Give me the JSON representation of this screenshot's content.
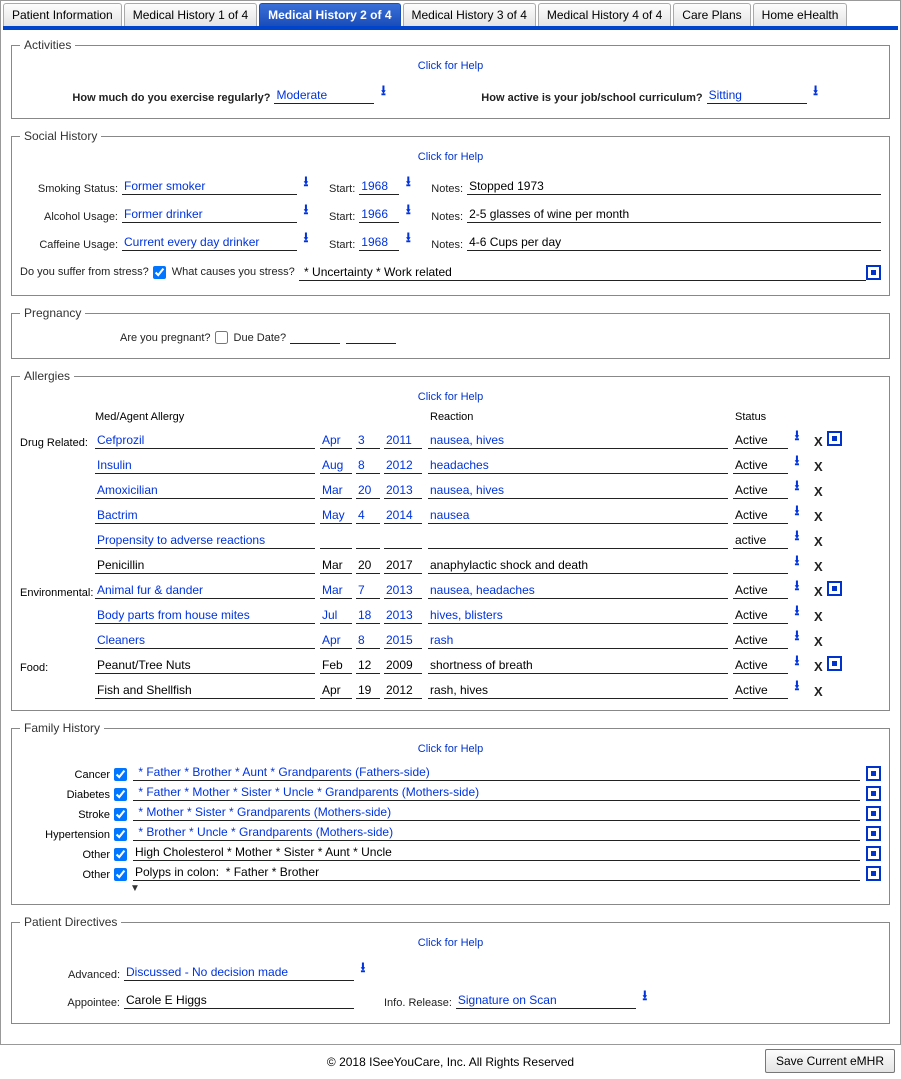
{
  "tabs": [
    "Patient Information",
    "Medical History 1 of 4",
    "Medical History 2 of 4",
    "Medical History 3 of 4",
    "Medical History 4 of 4",
    "Care Plans",
    "Home eHealth"
  ],
  "activeTabIndex": 2,
  "helpText": "Click for Help",
  "activities": {
    "legend": "Activities",
    "exerciseLabel": "How much do you exercise regularly?",
    "exerciseValue": "Moderate",
    "activeLabel": "How active is your job/school curriculum?",
    "activeValue": "Sitting"
  },
  "social": {
    "legend": "Social History",
    "smokingLabel": "Smoking Status:",
    "smokingValue": "Former smoker",
    "smokingStart": "1968",
    "smokingNotes": "Stopped 1973",
    "alcoholLabel": "Alcohol Usage:",
    "alcoholValue": "Former drinker",
    "alcoholStart": "1966",
    "alcoholNotes": "2-5 glasses of wine per month",
    "caffeineLabel": "Caffeine Usage:",
    "caffeineValue": "Current every day drinker",
    "caffeineStart": "1968",
    "caffeineNotes": "4-6 Cups per day",
    "startLabel": "Start:",
    "notesLabel": "Notes:",
    "stressLabel": "Do you suffer from stress?",
    "stressCausesLabel": "What causes you stress?",
    "stressValue": " * Uncertainty * Work related"
  },
  "pregnancy": {
    "legend": "Pregnancy",
    "pregnantLabel": "Are you pregnant?",
    "dueDateLabel": "Due Date?"
  },
  "allergies": {
    "legend": "Allergies",
    "headers": {
      "med": "Med/Agent Allergy",
      "reaction": "Reaction",
      "status": "Status"
    },
    "groups": [
      {
        "label": "Drug Related:",
        "hasSq": true,
        "rows": [
          {
            "name": "Cefprozil",
            "mon": "Apr",
            "day": "3",
            "year": "2011",
            "reaction": "nausea, hives",
            "status": "Active",
            "blue": true
          },
          {
            "name": "Insulin",
            "mon": "Aug",
            "day": "8",
            "year": "2012",
            "reaction": "headaches",
            "status": "Active",
            "blue": true
          },
          {
            "name": "Amoxicilian",
            "mon": "Mar",
            "day": "20",
            "year": "2013",
            "reaction": "nausea, hives",
            "status": "Active",
            "blue": true
          },
          {
            "name": "Bactrim",
            "mon": "May",
            "day": "4",
            "year": "2014",
            "reaction": "nausea",
            "status": "Active",
            "blue": true
          },
          {
            "name": "Propensity to adverse reactions",
            "mon": "",
            "day": "",
            "year": "",
            "reaction": "",
            "status": "active",
            "blue": true
          },
          {
            "name": "Penicillin",
            "mon": "Mar",
            "day": "20",
            "year": "2017",
            "reaction": "anaphylactic shock and death",
            "status": "",
            "blue": false
          }
        ]
      },
      {
        "label": "Environmental:",
        "hasSq": true,
        "rows": [
          {
            "name": "Animal fur & dander",
            "mon": "Mar",
            "day": "7",
            "year": "2013",
            "reaction": "nausea, headaches",
            "status": "Active",
            "blue": true
          },
          {
            "name": "Body parts from house mites",
            "mon": "Jul",
            "day": "18",
            "year": "2013",
            "reaction": "hives, blisters",
            "status": "Active",
            "blue": true
          },
          {
            "name": "Cleaners",
            "mon": "Apr",
            "day": "8",
            "year": "2015",
            "reaction": "rash",
            "status": "Active",
            "blue": true
          }
        ]
      },
      {
        "label": "Food:",
        "hasSq": true,
        "rows": [
          {
            "name": "Peanut/Tree Nuts",
            "mon": "Feb",
            "day": "12",
            "year": "2009",
            "reaction": "shortness of breath",
            "status": "Active",
            "blue": false
          },
          {
            "name": "Fish and Shellfish",
            "mon": "Apr",
            "day": "19",
            "year": "2012",
            "reaction": "rash, hives",
            "status": "Active",
            "blue": false
          }
        ]
      }
    ]
  },
  "family": {
    "legend": "Family History",
    "rows": [
      {
        "label": "Cancer",
        "value": " * Father * Brother * Aunt * Grandparents (Fathers-side)",
        "blue": true
      },
      {
        "label": "Diabetes",
        "value": " * Father * Mother * Sister * Uncle * Grandparents (Mothers-side)",
        "blue": true
      },
      {
        "label": "Stroke",
        "value": " * Mother * Sister * Grandparents (Mothers-side)",
        "blue": true
      },
      {
        "label": "Hypertension",
        "value": " * Brother * Uncle * Grandparents (Mothers-side)",
        "blue": true
      },
      {
        "label": "Other",
        "value": "High Cholesterol * Mother * Sister * Aunt * Uncle",
        "blue": false
      },
      {
        "label": "Other",
        "value": "Polyps in colon:  * Father * Brother",
        "blue": false
      }
    ]
  },
  "directives": {
    "legend": "Patient Directives",
    "advancedLabel": "Advanced:",
    "advancedValue": "Discussed - No decision made",
    "appointeeLabel": "Appointee:",
    "appointeeValue": "Carole E Higgs",
    "infoReleaseLabel": "Info. Release:",
    "infoReleaseValue": "Signature on Scan"
  },
  "footer": {
    "copyright": "© 2018 ISeeYouCare, Inc. All Rights Reserved",
    "saveButton": "Save Current eMHR"
  }
}
